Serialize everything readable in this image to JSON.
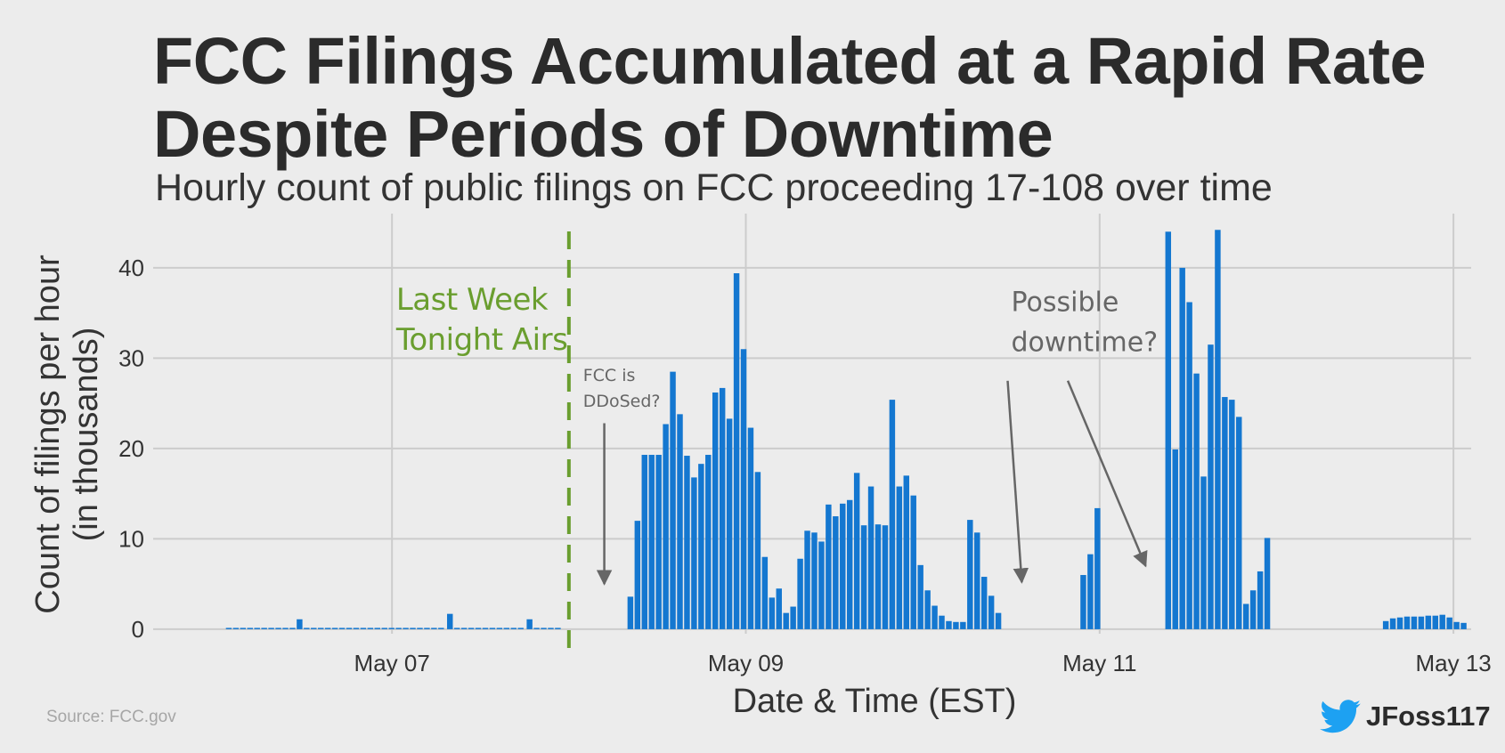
{
  "title_lines": [
    "FCC Filings Accumulated at a Rapid Rate",
    "Despite Periods of Downtime"
  ],
  "subtitle": "Hourly count of public filings on FCC proceeding 17-108 over time",
  "source": "Source: FCC.gov",
  "credit": {
    "handle": "JFoss117",
    "icon": "twitter-bird-icon"
  },
  "colors": {
    "bar": "#1477d0",
    "event_line": "#6a9e2f",
    "annotation": "#666666",
    "grid": "#cccccc",
    "background": "#ececec"
  },
  "chart_data": {
    "type": "bar",
    "xlabel": "Date & Time (EST)",
    "ylabel": [
      "Count of filings per hour",
      "(in thousands)"
    ],
    "x_unit": "days",
    "xlim": [
      5.65,
      13.1
    ],
    "ylim": [
      -0.5,
      46
    ],
    "x_ticks": [
      {
        "x": 7,
        "label": "May 07"
      },
      {
        "x": 9,
        "label": "May 09"
      },
      {
        "x": 11,
        "label": "May 11"
      },
      {
        "x": 13,
        "label": "May 13"
      }
    ],
    "y_ticks": [
      0,
      10,
      20,
      30,
      40
    ],
    "grid": true,
    "bar_width_days": 0.0375,
    "event_line": {
      "x": 8.0,
      "label_lines": [
        "Last Week",
        "Tonight Airs"
      ]
    },
    "annotations": [
      {
        "text_lines": [
          "FCC is",
          "DDoSed?"
        ],
        "text_x": 8.08,
        "text_y": 27.5,
        "size": "small",
        "arrows": [
          {
            "from": [
              8.2,
              22.8
            ],
            "to": [
              8.2,
              5.0
            ]
          }
        ]
      },
      {
        "text_lines": [
          "Possible",
          "downtime?"
        ],
        "text_x": 10.5,
        "text_y": 35.2,
        "size": "large",
        "arrows": [
          {
            "from": [
              10.48,
              27.5
            ],
            "to": [
              10.56,
              5.2
            ]
          },
          {
            "from": [
              10.82,
              27.5
            ],
            "to": [
              11.26,
              7.0
            ]
          }
        ]
      }
    ],
    "series": [
      {
        "values": [
          [
            6.08,
            0.1
          ],
          [
            6.12,
            0.1
          ],
          [
            6.16,
            0.1
          ],
          [
            6.2,
            0.1
          ],
          [
            6.24,
            0.1
          ],
          [
            6.28,
            0.1
          ],
          [
            6.32,
            0.1
          ],
          [
            6.36,
            0.1
          ],
          [
            6.4,
            0.1
          ],
          [
            6.44,
            0.1
          ],
          [
            6.48,
            1.1
          ],
          [
            6.52,
            0.1
          ],
          [
            6.56,
            0.1
          ],
          [
            6.6,
            0.1
          ],
          [
            6.64,
            0.1
          ],
          [
            6.68,
            0.1
          ],
          [
            6.72,
            0.1
          ],
          [
            6.76,
            0.1
          ],
          [
            6.8,
            0.1
          ],
          [
            6.84,
            0.1
          ],
          [
            6.88,
            0.1
          ],
          [
            6.92,
            0.1
          ],
          [
            6.96,
            0.1
          ],
          [
            7.0,
            0.1
          ],
          [
            7.04,
            0.1
          ],
          [
            7.08,
            0.1
          ],
          [
            7.12,
            0.1
          ],
          [
            7.16,
            0.1
          ],
          [
            7.2,
            0.1
          ],
          [
            7.24,
            0.1
          ],
          [
            7.28,
            0.1
          ],
          [
            7.33,
            1.7
          ],
          [
            7.37,
            0.1
          ],
          [
            7.41,
            0.1
          ],
          [
            7.45,
            0.1
          ],
          [
            7.49,
            0.1
          ],
          [
            7.53,
            0.1
          ],
          [
            7.57,
            0.1
          ],
          [
            7.61,
            0.1
          ],
          [
            7.65,
            0.1
          ],
          [
            7.69,
            0.1
          ],
          [
            7.73,
            0.1
          ],
          [
            7.78,
            1.1
          ],
          [
            7.82,
            0.1
          ],
          [
            7.86,
            0.1
          ],
          [
            7.9,
            0.1
          ],
          [
            7.94,
            0.1
          ],
          [
            8.35,
            3.6
          ],
          [
            8.39,
            12.0
          ],
          [
            8.43,
            19.3
          ],
          [
            8.47,
            19.3
          ],
          [
            8.51,
            19.3
          ],
          [
            8.55,
            22.7
          ],
          [
            8.59,
            28.5
          ],
          [
            8.63,
            23.8
          ],
          [
            8.67,
            19.2
          ],
          [
            8.71,
            16.8
          ],
          [
            8.75,
            18.3
          ],
          [
            8.79,
            19.3
          ],
          [
            8.83,
            26.2
          ],
          [
            8.87,
            26.7
          ],
          [
            8.91,
            23.3
          ],
          [
            8.95,
            39.4
          ],
          [
            8.99,
            31.0
          ],
          [
            9.03,
            22.3
          ],
          [
            9.07,
            17.4
          ],
          [
            9.11,
            8.0
          ],
          [
            9.15,
            3.5
          ],
          [
            9.19,
            4.5
          ],
          [
            9.23,
            1.8
          ],
          [
            9.27,
            2.5
          ],
          [
            9.31,
            7.8
          ],
          [
            9.35,
            10.9
          ],
          [
            9.39,
            10.7
          ],
          [
            9.43,
            9.7
          ],
          [
            9.47,
            13.8
          ],
          [
            9.51,
            12.5
          ],
          [
            9.55,
            13.9
          ],
          [
            9.59,
            14.3
          ],
          [
            9.63,
            17.3
          ],
          [
            9.67,
            11.5
          ],
          [
            9.71,
            15.8
          ],
          [
            9.75,
            11.6
          ],
          [
            9.79,
            11.5
          ],
          [
            9.83,
            25.4
          ],
          [
            9.87,
            15.8
          ],
          [
            9.91,
            17.0
          ],
          [
            9.95,
            14.8
          ],
          [
            9.99,
            7.1
          ],
          [
            10.03,
            4.3
          ],
          [
            10.07,
            2.6
          ],
          [
            10.11,
            1.5
          ],
          [
            10.15,
            0.9
          ],
          [
            10.19,
            0.8
          ],
          [
            10.23,
            0.8
          ],
          [
            10.27,
            12.1
          ],
          [
            10.31,
            10.7
          ],
          [
            10.35,
            5.8
          ],
          [
            10.39,
            3.7
          ],
          [
            10.43,
            1.8
          ],
          [
            10.91,
            6.0
          ],
          [
            10.95,
            8.3
          ],
          [
            10.99,
            13.4
          ],
          [
            11.39,
            44.0
          ],
          [
            11.43,
            19.9
          ],
          [
            11.47,
            40.0
          ],
          [
            11.51,
            36.2
          ],
          [
            11.55,
            28.3
          ],
          [
            11.59,
            16.9
          ],
          [
            11.63,
            31.5
          ],
          [
            11.67,
            44.2
          ],
          [
            11.71,
            25.7
          ],
          [
            11.75,
            25.4
          ],
          [
            11.79,
            23.5
          ],
          [
            11.83,
            2.8
          ],
          [
            11.87,
            4.3
          ],
          [
            11.91,
            6.4
          ],
          [
            11.95,
            10.1
          ],
          [
            12.62,
            0.9
          ],
          [
            12.66,
            1.2
          ],
          [
            12.7,
            1.3
          ],
          [
            12.74,
            1.4
          ],
          [
            12.78,
            1.4
          ],
          [
            12.82,
            1.4
          ],
          [
            12.86,
            1.5
          ],
          [
            12.9,
            1.5
          ],
          [
            12.94,
            1.6
          ],
          [
            12.98,
            1.3
          ],
          [
            13.02,
            0.8
          ],
          [
            13.06,
            0.7
          ]
        ]
      }
    ]
  }
}
